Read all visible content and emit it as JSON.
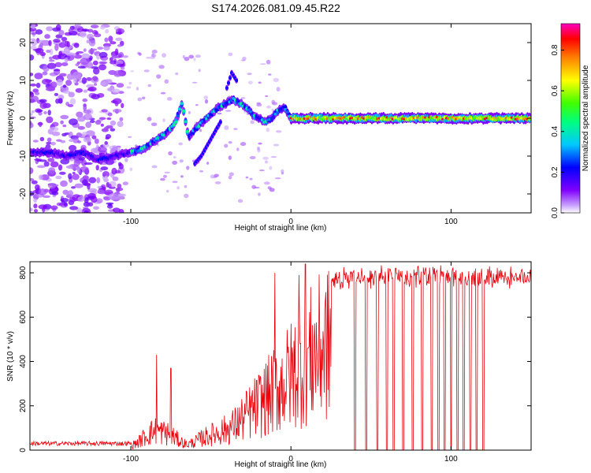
{
  "title": "S174.2026.081.09.45.R22",
  "chart_data": [
    {
      "type": "heatmap",
      "name": "spectrogram",
      "xlabel": "Height of straight line (km)",
      "ylabel": "Frequency (Hz)",
      "xlim": [
        -163,
        150
      ],
      "ylim": [
        -25,
        25
      ],
      "xticks": [
        -100,
        0,
        100
      ],
      "yticks": [
        -20,
        -10,
        0,
        10,
        20
      ],
      "colorbar": {
        "label": "Normalized spectral amplitude",
        "range": [
          0.0,
          0.93
        ],
        "ticks": [
          0.0,
          0.2,
          0.4,
          0.6,
          0.8
        ],
        "tick_labels": [
          "0.0",
          "0.2",
          "0.4",
          "0.6",
          "0.8"
        ],
        "colormap": [
          "#ffffff",
          "#8000ff",
          "#0000ff",
          "#00ffff",
          "#00ff00",
          "#ffff00",
          "#ff8000",
          "#ff0000",
          "#ff00c0"
        ]
      },
      "ridge": {
        "x": [
          -158,
          -150,
          -140,
          -130,
          -120,
          -110,
          -100,
          -92,
          -85,
          -78,
          -72,
          -68,
          -64,
          -60,
          -55,
          -50,
          -45,
          -40,
          -36,
          -32,
          -28,
          -24,
          -20,
          -16,
          -12,
          -8,
          -4,
          0,
          10,
          30,
          60,
          100,
          150
        ],
        "y": [
          -9,
          -9,
          -10,
          -9,
          -11,
          -10,
          -9,
          -8,
          -6,
          -4,
          -1,
          4,
          -5,
          -3,
          -1,
          1,
          3,
          4,
          5,
          4,
          3,
          1,
          0,
          -1,
          0,
          2,
          3,
          0,
          0,
          0,
          0,
          0,
          0
        ]
      },
      "secondary_branch": {
        "x": [
          -60,
          -56,
          -52,
          -48,
          -44
        ],
        "y": [
          -12,
          -10,
          -7,
          -4,
          -1
        ]
      },
      "peak_branch": {
        "x": [
          -40,
          -37,
          -34
        ],
        "y": [
          8,
          12,
          10
        ]
      }
    },
    {
      "type": "line",
      "name": "snr",
      "xlabel": "Height of straight line (km)",
      "ylabel": "SNR (10 * v/v)",
      "xlim": [
        -163,
        150
      ],
      "ylim": [
        0,
        850
      ],
      "xticks": [
        -100,
        0,
        100
      ],
      "yticks": [
        0,
        200,
        400,
        600,
        800
      ],
      "color": "#e8000b",
      "envelope": {
        "x": [
          -163,
          -100,
          -95,
          -90,
          -85,
          -80,
          -75,
          -70,
          -65,
          -60,
          -55,
          -50,
          -45,
          -40,
          -35,
          -30,
          -25,
          -20,
          -15,
          -10,
          -5,
          0,
          5,
          10,
          15,
          20,
          25,
          30,
          40,
          60,
          80,
          100,
          120,
          150
        ],
        "y": [
          20,
          30,
          60,
          110,
          140,
          130,
          110,
          70,
          40,
          60,
          90,
          110,
          130,
          150,
          180,
          230,
          280,
          330,
          380,
          430,
          480,
          540,
          610,
          660,
          700,
          740,
          770,
          790,
          795,
          800,
          800,
          795,
          800,
          790
        ]
      },
      "spikes": [
        {
          "x": -84,
          "y": 430
        },
        {
          "x": -75,
          "y": 370
        },
        {
          "x": -10,
          "y": 800
        },
        {
          "x": 9,
          "y": 840
        },
        {
          "x": 5,
          "y": 790
        }
      ],
      "dropouts_x": [
        40,
        47,
        54,
        60,
        64,
        70,
        76,
        82,
        88,
        92,
        96,
        100,
        104,
        108,
        112,
        116,
        120
      ]
    }
  ]
}
